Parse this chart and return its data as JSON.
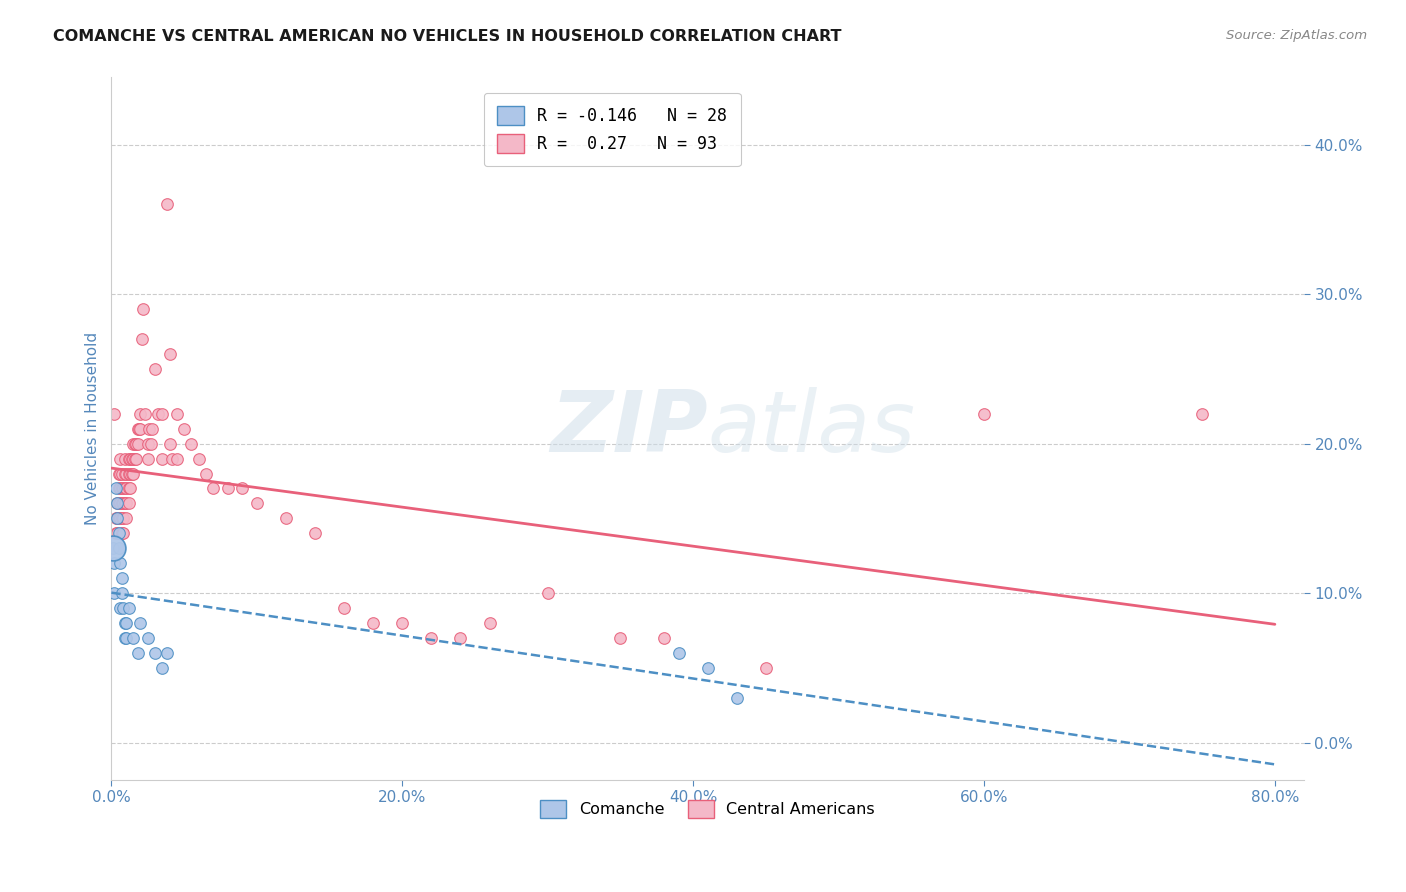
{
  "title": "COMANCHE VS CENTRAL AMERICAN NO VEHICLES IN HOUSEHOLD CORRELATION CHART",
  "source": "Source: ZipAtlas.com",
  "ylabel": "No Vehicles in Household",
  "comanche_color": "#aec6e8",
  "central_american_color": "#f4b8c8",
  "comanche_line_color": "#4d8fc4",
  "central_american_line_color": "#e8607a",
  "comanche_R": -0.146,
  "comanche_N": 28,
  "central_american_R": 0.27,
  "central_american_N": 93,
  "background_color": "#ffffff",
  "grid_color": "#cccccc",
  "axis_label_color": "#5588bb",
  "tick_label_color": "#5588bb",
  "watermark_zip": "ZIP",
  "watermark_atlas": "atlas",
  "marker_size": 70,
  "xlim": [
    0.0,
    0.82
  ],
  "ylim": [
    -0.025,
    0.445
  ],
  "comanche_scatter": [
    [
      0.001,
      0.13
    ],
    [
      0.002,
      0.12
    ],
    [
      0.002,
      0.1
    ],
    [
      0.003,
      0.17
    ],
    [
      0.004,
      0.16
    ],
    [
      0.004,
      0.15
    ],
    [
      0.005,
      0.14
    ],
    [
      0.005,
      0.13
    ],
    [
      0.006,
      0.12
    ],
    [
      0.006,
      0.09
    ],
    [
      0.007,
      0.11
    ],
    [
      0.007,
      0.1
    ],
    [
      0.008,
      0.09
    ],
    [
      0.009,
      0.08
    ],
    [
      0.009,
      0.07
    ],
    [
      0.01,
      0.08
    ],
    [
      0.01,
      0.07
    ],
    [
      0.012,
      0.09
    ],
    [
      0.015,
      0.07
    ],
    [
      0.018,
      0.06
    ],
    [
      0.02,
      0.08
    ],
    [
      0.025,
      0.07
    ],
    [
      0.03,
      0.06
    ],
    [
      0.035,
      0.05
    ],
    [
      0.038,
      0.06
    ],
    [
      0.39,
      0.06
    ],
    [
      0.41,
      0.05
    ],
    [
      0.43,
      0.03
    ]
  ],
  "central_american_scatter": [
    [
      0.002,
      0.22
    ],
    [
      0.003,
      0.15
    ],
    [
      0.003,
      0.14
    ],
    [
      0.004,
      0.16
    ],
    [
      0.004,
      0.15
    ],
    [
      0.004,
      0.14
    ],
    [
      0.005,
      0.18
    ],
    [
      0.005,
      0.17
    ],
    [
      0.005,
      0.16
    ],
    [
      0.005,
      0.15
    ],
    [
      0.006,
      0.19
    ],
    [
      0.006,
      0.18
    ],
    [
      0.006,
      0.17
    ],
    [
      0.006,
      0.16
    ],
    [
      0.006,
      0.15
    ],
    [
      0.007,
      0.18
    ],
    [
      0.007,
      0.17
    ],
    [
      0.007,
      0.16
    ],
    [
      0.007,
      0.15
    ],
    [
      0.007,
      0.14
    ],
    [
      0.008,
      0.17
    ],
    [
      0.008,
      0.16
    ],
    [
      0.008,
      0.15
    ],
    [
      0.008,
      0.14
    ],
    [
      0.009,
      0.19
    ],
    [
      0.009,
      0.18
    ],
    [
      0.009,
      0.17
    ],
    [
      0.009,
      0.16
    ],
    [
      0.01,
      0.18
    ],
    [
      0.01,
      0.17
    ],
    [
      0.01,
      0.16
    ],
    [
      0.01,
      0.15
    ],
    [
      0.012,
      0.19
    ],
    [
      0.012,
      0.18
    ],
    [
      0.012,
      0.17
    ],
    [
      0.012,
      0.16
    ],
    [
      0.013,
      0.19
    ],
    [
      0.013,
      0.18
    ],
    [
      0.013,
      0.17
    ],
    [
      0.014,
      0.19
    ],
    [
      0.014,
      0.18
    ],
    [
      0.015,
      0.2
    ],
    [
      0.015,
      0.19
    ],
    [
      0.015,
      0.18
    ],
    [
      0.016,
      0.2
    ],
    [
      0.016,
      0.19
    ],
    [
      0.017,
      0.2
    ],
    [
      0.017,
      0.19
    ],
    [
      0.018,
      0.21
    ],
    [
      0.018,
      0.2
    ],
    [
      0.019,
      0.21
    ],
    [
      0.02,
      0.22
    ],
    [
      0.02,
      0.21
    ],
    [
      0.021,
      0.27
    ],
    [
      0.022,
      0.29
    ],
    [
      0.023,
      0.22
    ],
    [
      0.025,
      0.2
    ],
    [
      0.025,
      0.19
    ],
    [
      0.026,
      0.21
    ],
    [
      0.027,
      0.2
    ],
    [
      0.028,
      0.21
    ],
    [
      0.03,
      0.25
    ],
    [
      0.032,
      0.22
    ],
    [
      0.035,
      0.22
    ],
    [
      0.035,
      0.19
    ],
    [
      0.038,
      0.36
    ],
    [
      0.04,
      0.26
    ],
    [
      0.04,
      0.2
    ],
    [
      0.042,
      0.19
    ],
    [
      0.045,
      0.22
    ],
    [
      0.045,
      0.19
    ],
    [
      0.05,
      0.21
    ],
    [
      0.055,
      0.2
    ],
    [
      0.06,
      0.19
    ],
    [
      0.065,
      0.18
    ],
    [
      0.07,
      0.17
    ],
    [
      0.08,
      0.17
    ],
    [
      0.09,
      0.17
    ],
    [
      0.1,
      0.16
    ],
    [
      0.12,
      0.15
    ],
    [
      0.14,
      0.14
    ],
    [
      0.16,
      0.09
    ],
    [
      0.18,
      0.08
    ],
    [
      0.2,
      0.08
    ],
    [
      0.22,
      0.07
    ],
    [
      0.24,
      0.07
    ],
    [
      0.26,
      0.08
    ],
    [
      0.3,
      0.1
    ],
    [
      0.35,
      0.07
    ],
    [
      0.38,
      0.07
    ],
    [
      0.45,
      0.05
    ],
    [
      0.6,
      0.22
    ],
    [
      0.75,
      0.22
    ]
  ]
}
